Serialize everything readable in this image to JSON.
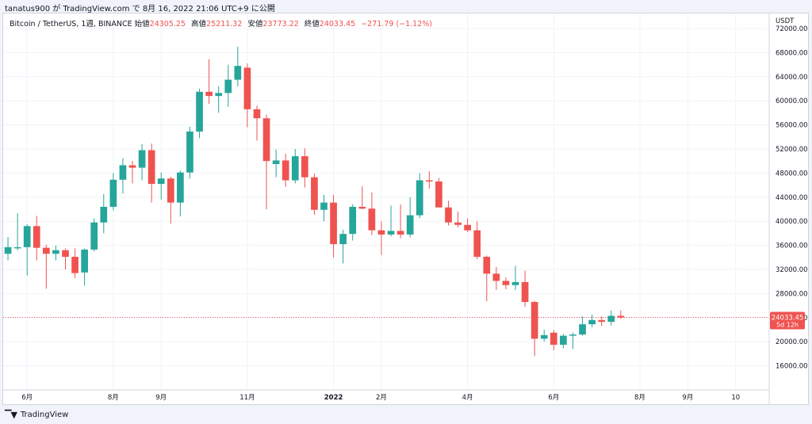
{
  "header": {
    "text": "tanatus900 が TradingView.com で 8月 16, 2022 21:06 UTC+9 に公開"
  },
  "legend": {
    "symbol": "Bitcoin / TetherUS, 1週, BINANCE",
    "open_label": "始値",
    "open": "24305.25",
    "high_label": "高値",
    "high": "25211.32",
    "low_label": "安値",
    "low": "23773.22",
    "close_label": "終値",
    "close": "24033.45",
    "change": "−271.79 (−1.12%)"
  },
  "footer": {
    "brand": "TradingView"
  },
  "colors": {
    "up": "#26a69a",
    "down": "#ef5350",
    "grid": "#f0f3fa",
    "axis_text": "#131722"
  },
  "chart_data": {
    "type": "candlestick",
    "currency": "USDT",
    "ylim": [
      12000,
      74500
    ],
    "y_ticks": [
      16000,
      20000,
      24000,
      28000,
      32000,
      36000,
      40000,
      44000,
      48000,
      52000,
      56000,
      60000,
      64000,
      68000,
      72000
    ],
    "y_tick_labels": [
      "16000.00",
      "20000.00",
      "24000.00",
      "28000.00",
      "32000.00",
      "36000.00",
      "40000.00",
      "44000.00",
      "48000.00",
      "52000.00",
      "56000.00",
      "60000.00",
      "64000.00",
      "68000.00",
      "72000.00"
    ],
    "x_ticks": [
      {
        "label": "6月",
        "index": 2
      },
      {
        "label": "8月",
        "index": 11
      },
      {
        "label": "9月",
        "index": 16
      },
      {
        "label": "11月",
        "index": 25
      },
      {
        "label": "2022",
        "index": 34
      },
      {
        "label": "2月",
        "index": 39
      },
      {
        "label": "4月",
        "index": 48
      },
      {
        "label": "6月",
        "index": 57
      },
      {
        "label": "8月",
        "index": 66
      },
      {
        "label": "9月",
        "index": 71
      },
      {
        "label": "10",
        "index": 76
      }
    ],
    "total_slots": 80,
    "last_price": "24033.45",
    "last_price_value": 24033.45,
    "countdown": "5d 12h",
    "candles": [
      {
        "o": 34600,
        "h": 37400,
        "l": 33500,
        "c": 35700
      },
      {
        "o": 35700,
        "h": 41300,
        "l": 35200,
        "c": 35700
      },
      {
        "o": 35700,
        "h": 39500,
        "l": 31000,
        "c": 39200
      },
      {
        "o": 39200,
        "h": 40900,
        "l": 33500,
        "c": 35600
      },
      {
        "o": 35600,
        "h": 36100,
        "l": 28800,
        "c": 34600
      },
      {
        "o": 34600,
        "h": 36000,
        "l": 33500,
        "c": 35200
      },
      {
        "o": 35200,
        "h": 35500,
        "l": 32000,
        "c": 34100
      },
      {
        "o": 34100,
        "h": 35500,
        "l": 30600,
        "c": 31400
      },
      {
        "o": 31500,
        "h": 35500,
        "l": 29300,
        "c": 35300
      },
      {
        "o": 35300,
        "h": 40500,
        "l": 35000,
        "c": 39800
      },
      {
        "o": 39800,
        "h": 44500,
        "l": 38000,
        "c": 42400
      },
      {
        "o": 42400,
        "h": 48000,
        "l": 41800,
        "c": 46900
      },
      {
        "o": 46900,
        "h": 50500,
        "l": 44600,
        "c": 49300
      },
      {
        "o": 49300,
        "h": 50000,
        "l": 46300,
        "c": 48900
      },
      {
        "o": 48900,
        "h": 52800,
        "l": 46800,
        "c": 51800
      },
      {
        "o": 51800,
        "h": 52900,
        "l": 43100,
        "c": 46200
      },
      {
        "o": 46200,
        "h": 48100,
        "l": 43600,
        "c": 47100
      },
      {
        "o": 47100,
        "h": 47400,
        "l": 39600,
        "c": 43100
      },
      {
        "o": 43100,
        "h": 48400,
        "l": 40800,
        "c": 48100
      },
      {
        "o": 48100,
        "h": 55700,
        "l": 47100,
        "c": 54900
      },
      {
        "o": 54900,
        "h": 62000,
        "l": 53800,
        "c": 61500
      },
      {
        "o": 61500,
        "h": 66900,
        "l": 59500,
        "c": 60800
      },
      {
        "o": 60800,
        "h": 62400,
        "l": 58000,
        "c": 61300
      },
      {
        "o": 61300,
        "h": 66000,
        "l": 59000,
        "c": 63500
      },
      {
        "o": 63500,
        "h": 69000,
        "l": 62400,
        "c": 65800
      },
      {
        "o": 65500,
        "h": 66200,
        "l": 55600,
        "c": 58600
      },
      {
        "o": 58600,
        "h": 59200,
        "l": 53400,
        "c": 57100
      },
      {
        "o": 57100,
        "h": 57700,
        "l": 42000,
        "c": 50000
      },
      {
        "o": 49500,
        "h": 51900,
        "l": 47300,
        "c": 50100
      },
      {
        "o": 50100,
        "h": 51200,
        "l": 45700,
        "c": 46800
      },
      {
        "o": 46800,
        "h": 52000,
        "l": 46300,
        "c": 50800
      },
      {
        "o": 50800,
        "h": 52100,
        "l": 45600,
        "c": 47300
      },
      {
        "o": 47300,
        "h": 47900,
        "l": 41100,
        "c": 41900
      },
      {
        "o": 41900,
        "h": 44400,
        "l": 40000,
        "c": 43100
      },
      {
        "o": 43100,
        "h": 44400,
        "l": 34000,
        "c": 36200
      },
      {
        "o": 36200,
        "h": 38600,
        "l": 33000,
        "c": 37900
      },
      {
        "o": 37900,
        "h": 42800,
        "l": 36800,
        "c": 42400
      },
      {
        "o": 42400,
        "h": 45800,
        "l": 42000,
        "c": 42100
      },
      {
        "o": 42100,
        "h": 44800,
        "l": 37700,
        "c": 38500
      },
      {
        "o": 38500,
        "h": 40000,
        "l": 34400,
        "c": 37800
      },
      {
        "o": 37800,
        "h": 42600,
        "l": 37500,
        "c": 38400
      },
      {
        "o": 38400,
        "h": 42800,
        "l": 37200,
        "c": 37800
      },
      {
        "o": 37800,
        "h": 44000,
        "l": 37300,
        "c": 41000
      },
      {
        "o": 41000,
        "h": 48000,
        "l": 40500,
        "c": 46800
      },
      {
        "o": 46800,
        "h": 48300,
        "l": 45400,
        "c": 46600
      },
      {
        "o": 46600,
        "h": 47200,
        "l": 42400,
        "c": 42300
      },
      {
        "o": 42300,
        "h": 43400,
        "l": 39300,
        "c": 39800
      },
      {
        "o": 39800,
        "h": 41600,
        "l": 39000,
        "c": 39400
      },
      {
        "o": 39400,
        "h": 40500,
        "l": 38200,
        "c": 38500
      },
      {
        "o": 38500,
        "h": 40000,
        "l": 33700,
        "c": 34100
      },
      {
        "o": 34100,
        "h": 34300,
        "l": 26700,
        "c": 31300
      },
      {
        "o": 31300,
        "h": 32400,
        "l": 28600,
        "c": 30100
      },
      {
        "o": 30100,
        "h": 30700,
        "l": 28700,
        "c": 29400
      },
      {
        "o": 29400,
        "h": 32600,
        "l": 28600,
        "c": 29900
      },
      {
        "o": 29900,
        "h": 31800,
        "l": 25800,
        "c": 26600
      },
      {
        "o": 26600,
        "h": 26800,
        "l": 17600,
        "c": 20500
      },
      {
        "o": 20500,
        "h": 22000,
        "l": 20000,
        "c": 21100
      },
      {
        "o": 21500,
        "h": 21900,
        "l": 18600,
        "c": 19500
      },
      {
        "o": 19500,
        "h": 21300,
        "l": 18900,
        "c": 21000
      },
      {
        "o": 21000,
        "h": 21500,
        "l": 18800,
        "c": 21200
      },
      {
        "o": 21200,
        "h": 24200,
        "l": 21000,
        "c": 22900
      },
      {
        "o": 22900,
        "h": 24500,
        "l": 22400,
        "c": 23600
      },
      {
        "o": 23600,
        "h": 24200,
        "l": 22600,
        "c": 23300
      },
      {
        "o": 23300,
        "h": 25200,
        "l": 22700,
        "c": 24300
      },
      {
        "o": 24305.25,
        "h": 25211.32,
        "l": 23773.22,
        "c": 24033.45
      }
    ]
  }
}
